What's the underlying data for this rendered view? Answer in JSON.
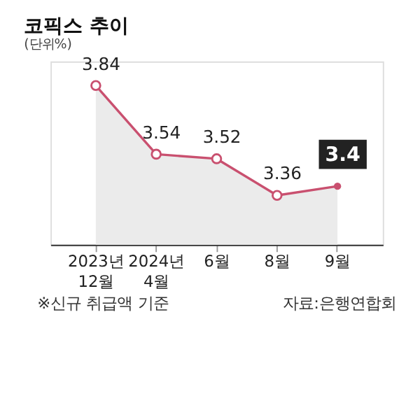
{
  "chart_data": {
    "type": "area",
    "title": "코픽스 추이",
    "subtitle": "(단위%)",
    "categories": [
      "2023년 12월",
      "2024년 4월",
      "6월",
      "8월",
      "9월"
    ],
    "series": [
      {
        "color": "#c9506f",
        "values": [
          3.84,
          3.54,
          3.52,
          3.36,
          3.4
        ]
      }
    ],
    "data_labels": true,
    "marker": "circle",
    "grid": false,
    "annotations": [
      "※신규 취급액 기준",
      "자료:은행연합회"
    ]
  }
}
